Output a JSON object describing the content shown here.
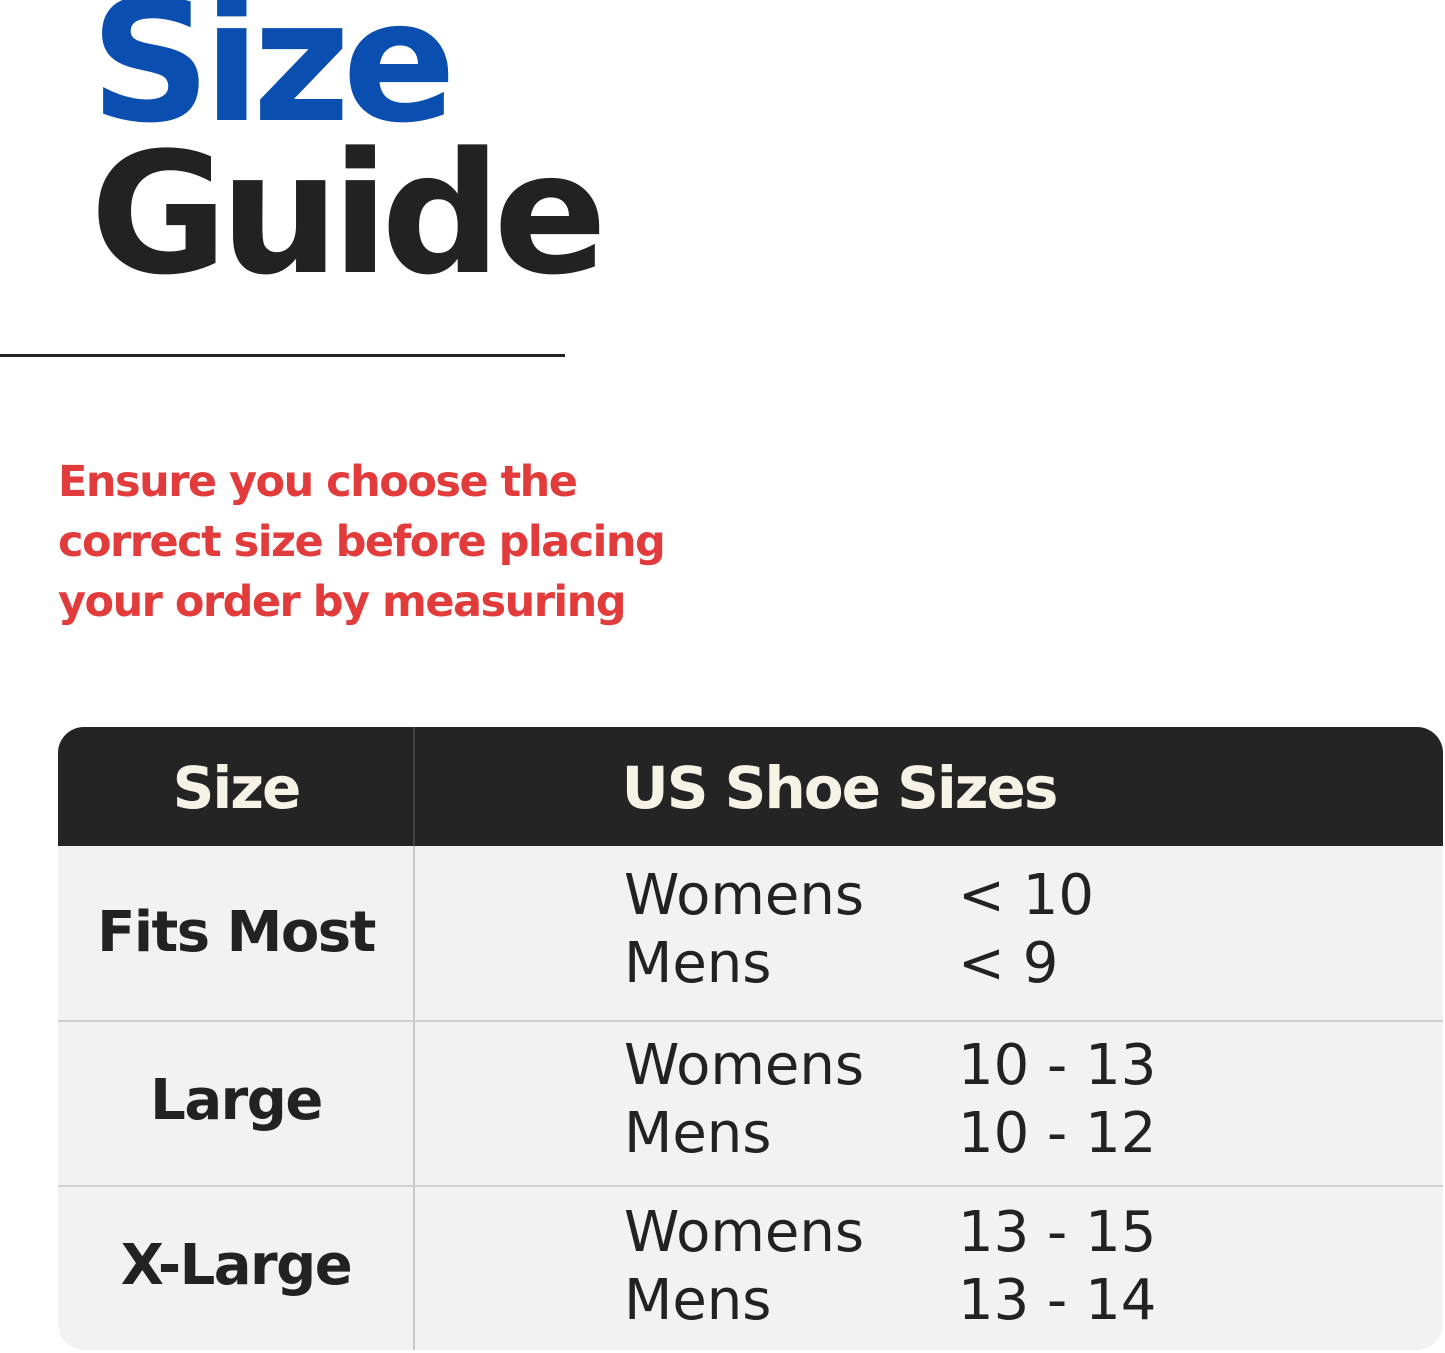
{
  "title": {
    "line1": "Size",
    "line2": "Guide",
    "accent_color": "#0a4fb0"
  },
  "note": {
    "lines": [
      "Ensure you choose the",
      "correct size before placing",
      "your order by measuring"
    ],
    "color": "#e23b3b"
  },
  "table": {
    "headers": [
      "Size",
      "US Shoe Sizes"
    ],
    "rows": [
      {
        "size": "Fits Most",
        "entries": [
          {
            "gender": "Womens",
            "range": "< 10"
          },
          {
            "gender": "Mens",
            "range": "< 9"
          }
        ]
      },
      {
        "size": "Large",
        "entries": [
          {
            "gender": "Womens",
            "range": "10 - 13"
          },
          {
            "gender": "Mens",
            "range": "10 - 12"
          }
        ]
      },
      {
        "size": "X-Large",
        "entries": [
          {
            "gender": "Womens",
            "range": "13 - 15"
          },
          {
            "gender": "Mens",
            "range": "13 - 14"
          }
        ]
      }
    ]
  }
}
